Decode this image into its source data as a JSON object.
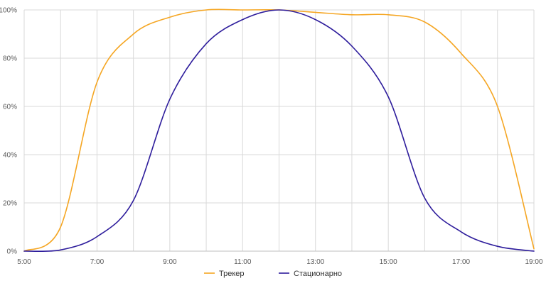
{
  "chart_data": {
    "type": "line",
    "title": "",
    "xlabel": "",
    "ylabel": "",
    "xlim": [
      "5:00",
      "19:00"
    ],
    "ylim": [
      0,
      100
    ],
    "grid": true,
    "legend_position": "bottom",
    "x_ticks": [
      "5:00",
      "7:00",
      "9:00",
      "11:00",
      "13:00",
      "15:00",
      "17:00",
      "19:00"
    ],
    "y_ticks": [
      "0%",
      "20%",
      "40%",
      "60%",
      "80%",
      "100%"
    ],
    "x": [
      "5:00",
      "6:00",
      "7:00",
      "8:00",
      "9:00",
      "10:00",
      "11:00",
      "12:00",
      "13:00",
      "14:00",
      "15:00",
      "16:00",
      "17:00",
      "18:00",
      "19:00"
    ],
    "series": [
      {
        "name": "Трекер",
        "color": "#f5a623",
        "values": [
          0,
          10,
          70,
          90,
          97,
          100,
          100,
          100,
          99,
          98,
          98,
          95,
          82,
          60,
          1
        ]
      },
      {
        "name": "Стационарно",
        "color": "#2e1d9c",
        "values": [
          0,
          0.5,
          6,
          21,
          63,
          86,
          96,
          100,
          96,
          85,
          64,
          22,
          8,
          2,
          0
        ]
      }
    ]
  }
}
